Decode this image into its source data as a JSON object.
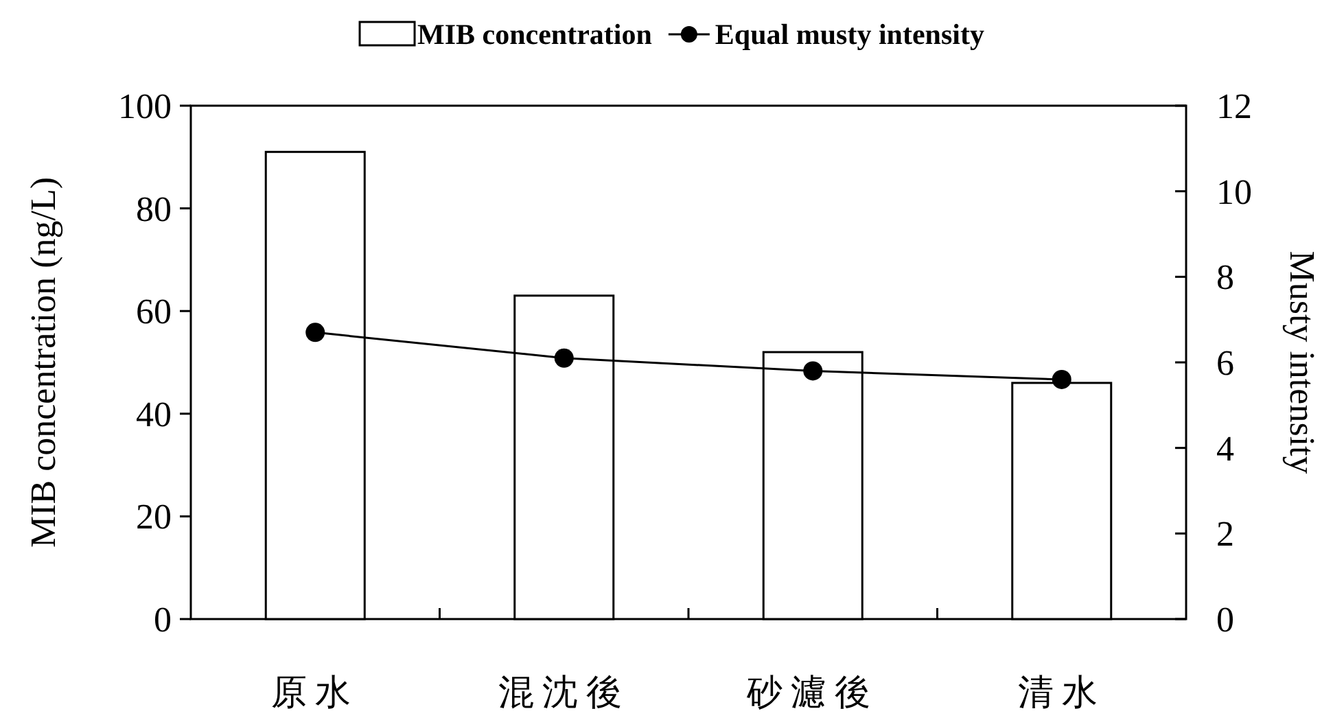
{
  "chart_data": {
    "type": "bar",
    "categories": [
      "原水",
      "混沈後",
      "砂濾後",
      "清水"
    ],
    "ylabel": "MIB concentration (ng/L)",
    "y2label": "Musty intensity",
    "ylim": [
      0,
      100
    ],
    "yticks": [
      0,
      20,
      40,
      60,
      80,
      100
    ],
    "y2lim": [
      0,
      12
    ],
    "y2ticks": [
      0,
      2,
      4,
      6,
      8,
      10,
      12
    ],
    "legend": "top",
    "grid": false,
    "series": [
      {
        "name": "MIB concentration",
        "color": "#ffffff",
        "values": [
          91,
          63,
          52,
          46
        ]
      },
      {
        "name": "Equal musty intensity",
        "type": "line",
        "axis": "y2",
        "color": "#000000",
        "marker": "circle",
        "values": [
          6.7,
          6.1,
          5.8,
          5.6
        ]
      }
    ]
  }
}
